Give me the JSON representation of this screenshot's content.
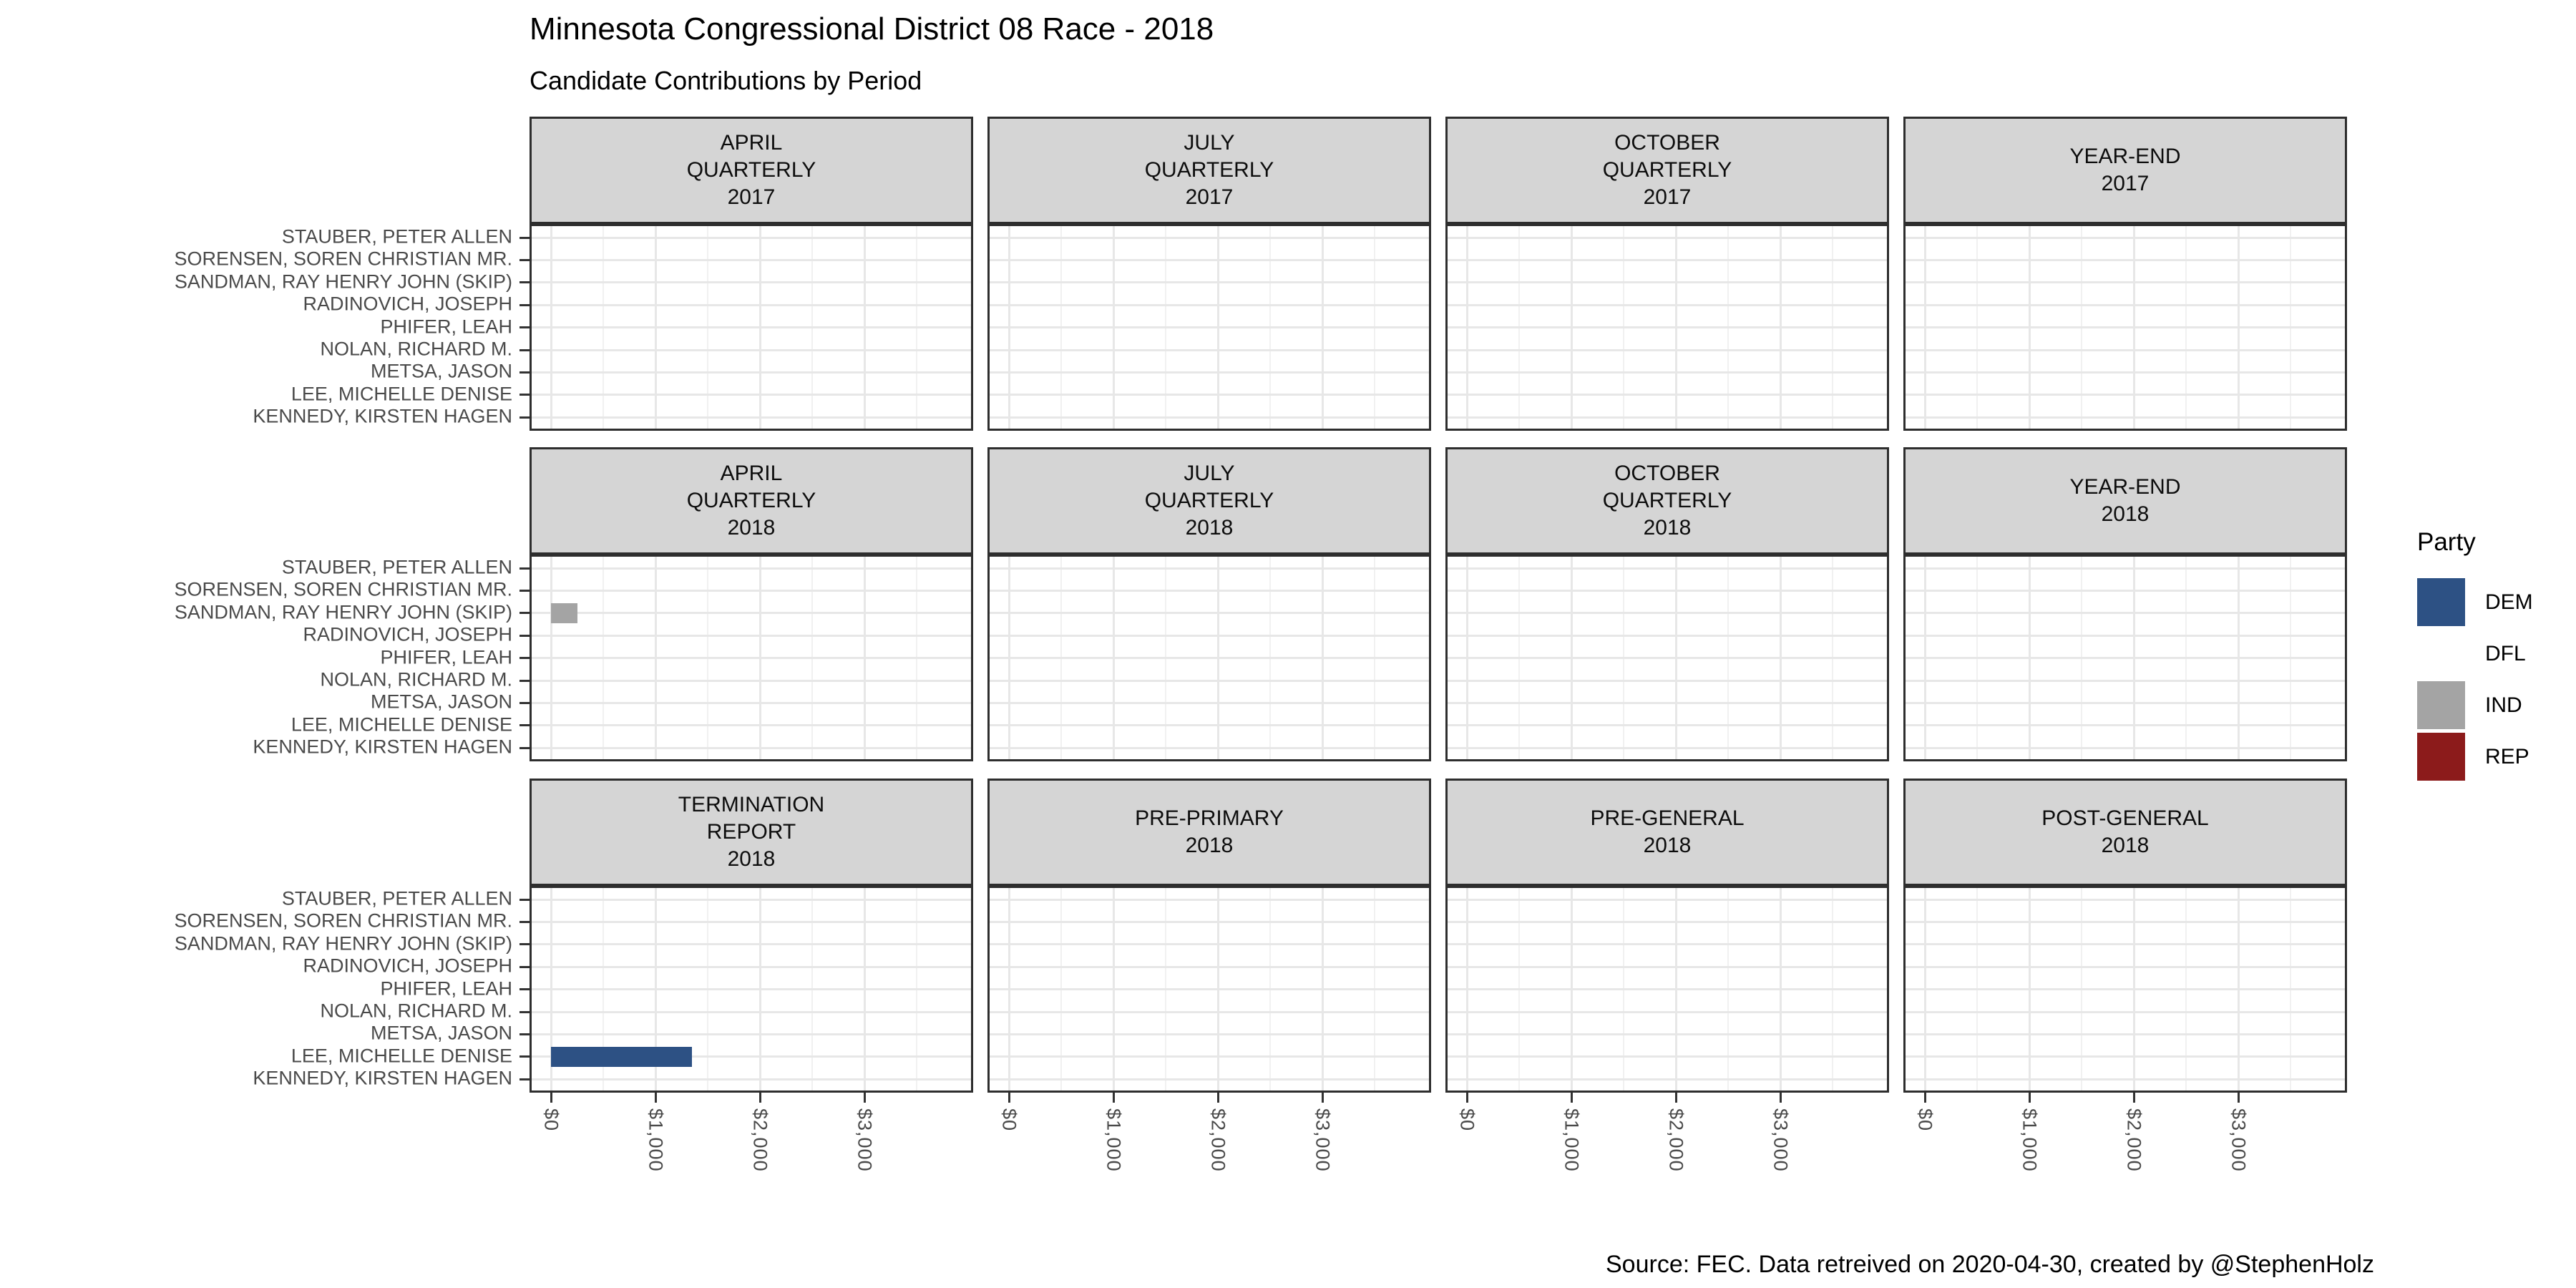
{
  "title": "Minnesota Congressional District 08 Race - 2018",
  "subtitle": "Candidate Contributions by Period",
  "caption": "Source: FEC. Data retreived on 2020-04-30, created by @StephenHolz",
  "legend": {
    "title": "Party",
    "entries": [
      {
        "label": "DEM",
        "color": "#2d5184"
      },
      {
        "label": "DFL",
        "color": "#ffffff"
      },
      {
        "label": "IND",
        "color": "#a4a4a4"
      },
      {
        "label": "REP",
        "color": "#8c1b1b"
      }
    ]
  },
  "chart_data": {
    "type": "bar",
    "orientation": "horizontal",
    "title": "Minnesota Congressional District 08 Race - 2018",
    "subtitle": "Candidate Contributions by Period",
    "facet_rows": [
      [
        "APRIL\nQUARTERLY\n2017",
        "JULY\nQUARTERLY\n2017",
        "OCTOBER\nQUARTERLY\n2017",
        "YEAR-END\n2017"
      ],
      [
        "APRIL\nQUARTERLY\n2018",
        "JULY\nQUARTERLY\n2018",
        "OCTOBER\nQUARTERLY\n2018",
        "YEAR-END\n2018"
      ],
      [
        "TERMINATION\nREPORT\n2018",
        "PRE-PRIMARY\n2018",
        "PRE-GENERAL\n2018",
        "POST-GENERAL\n2018"
      ]
    ],
    "y_categories": [
      "STAUBER, PETER ALLEN",
      "SORENSEN, SOREN CHRISTIAN MR.",
      "SANDMAN, RAY HENRY JOHN (SKIP)",
      "RADINOVICH, JOSEPH",
      "PHIFER, LEAH",
      "NOLAN, RICHARD M.",
      "METSA, JASON",
      "LEE, MICHELLE DENISE",
      "KENNEDY, KIRSTEN HAGEN"
    ],
    "x_axis": {
      "tick_labels": [
        "$0",
        "$1,000",
        "$2,000",
        "$3,000"
      ],
      "tick_values": [
        0,
        1000,
        2000,
        3000
      ],
      "minor_tick_values": [
        500,
        1500,
        2500,
        3500
      ],
      "xlim": [
        0,
        4000
      ],
      "grid": true,
      "legend_position": "right"
    },
    "bars": [
      {
        "facet": "APRIL QUARTERLY 2018",
        "facet_row": 1,
        "facet_col": 0,
        "candidate": "SANDMAN, RAY HENRY JOHN (SKIP)",
        "party": "IND",
        "value_usd": 250
      },
      {
        "facet": "TERMINATION REPORT 2018",
        "facet_row": 2,
        "facet_col": 0,
        "candidate": "LEE, MICHELLE DENISE",
        "party": "DEM",
        "value_usd": 1350
      }
    ]
  }
}
